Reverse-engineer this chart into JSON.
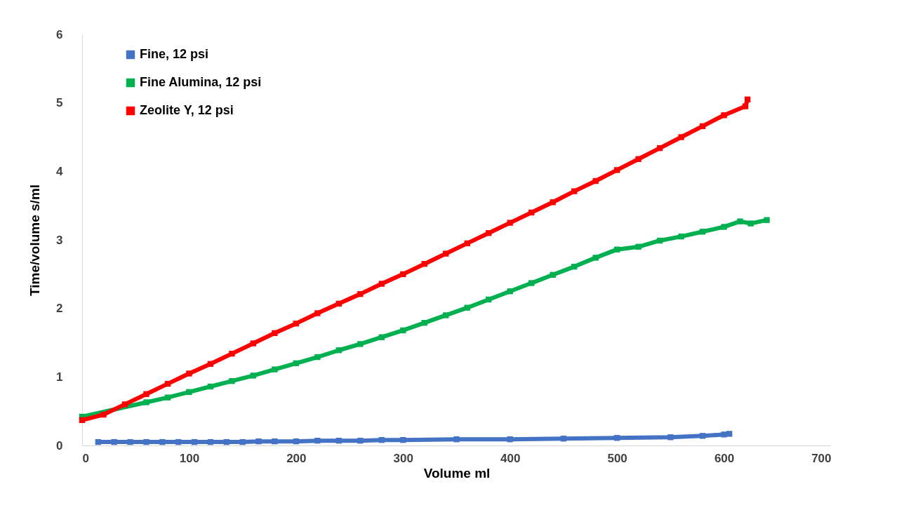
{
  "chart_data": {
    "type": "line",
    "xlabel": "Volume ml",
    "ylabel": "Time/volume  s/ml",
    "xlim": [
      0,
      700
    ],
    "xticks": [
      0,
      100,
      200,
      300,
      400,
      500,
      600,
      700
    ],
    "ylim": [
      0,
      6
    ],
    "yticks": [
      0,
      1,
      2,
      3,
      4,
      5,
      6
    ],
    "grid": false,
    "legend": "top left",
    "marker": "square",
    "line_style": "solid",
    "series": [
      {
        "name": "Fine, 12 psi",
        "color": "#4472c4",
        "x": [
          15,
          30,
          45,
          60,
          75,
          90,
          105,
          120,
          135,
          150,
          165,
          180,
          200,
          220,
          240,
          260,
          280,
          300,
          350,
          400,
          450,
          500,
          550,
          580,
          600,
          605
        ],
        "values": [
          0.05,
          0.05,
          0.05,
          0.05,
          0.05,
          0.05,
          0.05,
          0.05,
          0.05,
          0.05,
          0.06,
          0.06,
          0.06,
          0.07,
          0.07,
          0.07,
          0.08,
          0.08,
          0.09,
          0.09,
          0.1,
          0.11,
          0.12,
          0.14,
          0.16,
          0.17
        ]
      },
      {
        "name": "Fine Alumina, 12 psi",
        "color": "#00b050",
        "x": [
          0,
          60,
          80,
          100,
          120,
          140,
          160,
          180,
          200,
          220,
          240,
          260,
          280,
          300,
          320,
          340,
          360,
          380,
          400,
          420,
          440,
          460,
          480,
          500,
          520,
          540,
          560,
          580,
          600,
          615,
          625,
          640
        ],
        "values": [
          0.42,
          0.63,
          0.7,
          0.78,
          0.86,
          0.94,
          1.02,
          1.11,
          1.2,
          1.29,
          1.39,
          1.48,
          1.58,
          1.68,
          1.79,
          1.9,
          2.01,
          2.13,
          2.25,
          2.37,
          2.49,
          2.61,
          2.74,
          2.86,
          2.9,
          2.99,
          3.05,
          3.12,
          3.19,
          3.27,
          3.24,
          3.29
        ]
      },
      {
        "name": "Zeolite Y, 12 psi",
        "color": "#ff0000",
        "x": [
          0,
          20,
          40,
          60,
          80,
          100,
          120,
          140,
          160,
          180,
          200,
          220,
          240,
          260,
          280,
          300,
          320,
          340,
          360,
          380,
          400,
          420,
          440,
          460,
          480,
          500,
          520,
          540,
          560,
          580,
          600,
          620,
          622
        ],
        "values": [
          0.37,
          0.45,
          0.6,
          0.75,
          0.9,
          1.05,
          1.19,
          1.34,
          1.49,
          1.64,
          1.78,
          1.93,
          2.07,
          2.21,
          2.36,
          2.5,
          2.65,
          2.8,
          2.95,
          3.1,
          3.25,
          3.4,
          3.55,
          3.71,
          3.86,
          4.02,
          4.18,
          4.34,
          4.5,
          4.66,
          4.82,
          4.95,
          5.05
        ]
      }
    ]
  }
}
